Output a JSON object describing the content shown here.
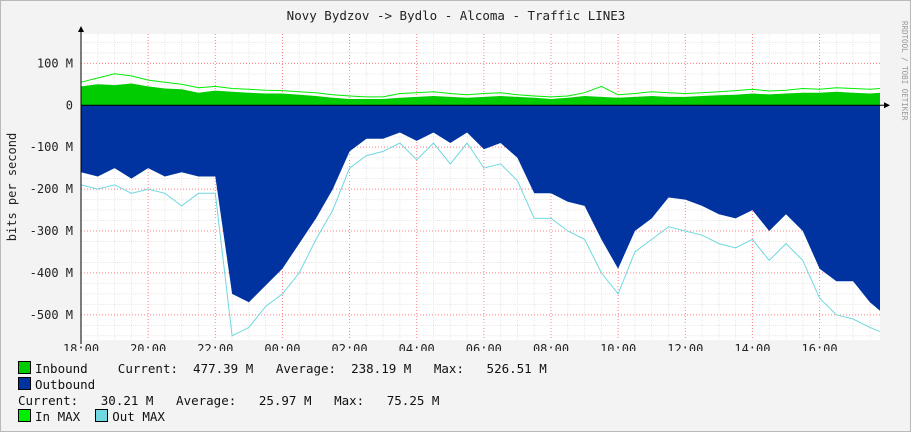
{
  "title": "Novy Bydzov -> Bydlo - Alcoma - Traffic LINE3",
  "watermark": "RRDTOOL / TOBI OETIKER",
  "colors": {
    "inbound": "#00cc00",
    "outbound": "#0033a0",
    "in_max": "#00ee00",
    "out_max": "#70d8e0",
    "grid": "#ff9999",
    "background": "#ffffff"
  },
  "legend": {
    "inbound_label": "Inbound",
    "inbound_stats": "Current:  477.39 M   Average:  238.19 M   Max:   526.51 M",
    "outbound_label": "Outbound",
    "outbound_stats": "Current:   30.21 M   Average:   25.97 M   Max:   75.25 M",
    "in_max_label": "In MAX",
    "out_max_label": "Out MAX"
  },
  "chart_data": {
    "type": "area",
    "title": "Novy Bydzov -> Bydlo - Alcoma - Traffic LINE3",
    "ylabel": "bits per second",
    "xlabel": "",
    "xlim": [
      18,
      41.8
    ],
    "ylim": [
      -560,
      170
    ],
    "x_unit": "hours (18:00 day 1 to 17:48 day 2)",
    "x_ticks": [
      "18:00",
      "20:00",
      "22:00",
      "00:00",
      "02:00",
      "04:00",
      "06:00",
      "08:00",
      "10:00",
      "12:00",
      "14:00",
      "16:00"
    ],
    "y_ticks": [
      "100 M",
      "0",
      "-100 M",
      "-200 M",
      "-300 M",
      "-400 M",
      "-500 M"
    ],
    "y_tick_values": [
      100,
      0,
      -100,
      -200,
      -300,
      -400,
      -500
    ],
    "grid": true,
    "series": [
      {
        "name": "Inbound",
        "x": [
          18.0,
          18.5,
          19.0,
          19.5,
          20.0,
          20.5,
          21.0,
          21.5,
          22.0,
          22.5,
          23.0,
          23.5,
          24.0,
          24.5,
          25.0,
          25.5,
          26.0,
          26.5,
          27.0,
          27.5,
          28.0,
          28.5,
          29.0,
          29.5,
          30.0,
          30.5,
          31.0,
          31.5,
          32.0,
          32.5,
          33.0,
          33.5,
          34.0,
          34.5,
          35.0,
          35.5,
          36.0,
          36.5,
          37.0,
          37.5,
          38.0,
          38.5,
          39.0,
          39.5,
          40.0,
          40.5,
          41.0,
          41.5,
          41.8
        ],
        "values": [
          -160,
          -170,
          -150,
          -175,
          -150,
          -170,
          -160,
          -170,
          -170,
          -450,
          -470,
          -430,
          -390,
          -330,
          -270,
          -200,
          -110,
          -80,
          -80,
          -65,
          -85,
          -65,
          -90,
          -65,
          -105,
          -90,
          -125,
          -210,
          -210,
          -230,
          -240,
          -320,
          -390,
          -300,
          -270,
          -220,
          -225,
          -240,
          -260,
          -270,
          -250,
          -300,
          -260,
          -300,
          -390,
          -420,
          -420,
          -470,
          -490
        ]
      },
      {
        "name": "Outbound",
        "x": [
          18.0,
          18.5,
          19.0,
          19.5,
          20.0,
          20.5,
          21.0,
          21.5,
          22.0,
          22.5,
          23.0,
          23.5,
          24.0,
          24.5,
          25.0,
          25.5,
          26.0,
          26.5,
          27.0,
          27.5,
          28.0,
          28.5,
          29.0,
          29.5,
          30.0,
          30.5,
          31.0,
          31.5,
          32.0,
          32.5,
          33.0,
          33.5,
          34.0,
          34.5,
          35.0,
          35.5,
          36.0,
          36.5,
          37.0,
          37.5,
          38.0,
          38.5,
          39.0,
          39.5,
          40.0,
          40.5,
          41.0,
          41.5,
          41.8
        ],
        "values": [
          45,
          50,
          48,
          52,
          45,
          40,
          38,
          30,
          35,
          32,
          30,
          28,
          28,
          25,
          22,
          18,
          15,
          15,
          15,
          18,
          20,
          22,
          20,
          18,
          20,
          22,
          20,
          18,
          15,
          18,
          22,
          20,
          18,
          20,
          22,
          20,
          20,
          22,
          24,
          25,
          28,
          26,
          28,
          30,
          30,
          32,
          30,
          28,
          30
        ]
      },
      {
        "name": "In MAX",
        "x": [
          18.0,
          18.5,
          19.0,
          19.5,
          20.0,
          20.5,
          21.0,
          21.5,
          22.0,
          22.5,
          23.0,
          23.5,
          24.0,
          24.5,
          25.0,
          25.5,
          26.0,
          26.5,
          27.0,
          27.5,
          28.0,
          28.5,
          29.0,
          29.5,
          30.0,
          30.5,
          31.0,
          31.5,
          32.0,
          32.5,
          33.0,
          33.5,
          34.0,
          34.5,
          35.0,
          35.5,
          36.0,
          36.5,
          37.0,
          37.5,
          38.0,
          38.5,
          39.0,
          39.5,
          40.0,
          40.5,
          41.0,
          41.5,
          41.8
        ],
        "values": [
          55,
          65,
          75,
          70,
          60,
          55,
          50,
          42,
          45,
          40,
          38,
          36,
          35,
          32,
          30,
          25,
          22,
          20,
          20,
          28,
          30,
          32,
          28,
          25,
          28,
          30,
          25,
          22,
          20,
          22,
          30,
          45,
          25,
          28,
          32,
          30,
          28,
          30,
          32,
          35,
          38,
          34,
          36,
          40,
          38,
          42,
          40,
          38,
          40
        ]
      },
      {
        "name": "Out MAX",
        "x": [
          18.0,
          18.5,
          19.0,
          19.5,
          20.0,
          20.5,
          21.0,
          21.5,
          22.0,
          22.5,
          23.0,
          23.5,
          24.0,
          24.5,
          25.0,
          25.5,
          26.0,
          26.5,
          27.0,
          27.5,
          28.0,
          28.5,
          29.0,
          29.5,
          30.0,
          30.5,
          31.0,
          31.5,
          32.0,
          32.5,
          33.0,
          33.5,
          34.0,
          34.5,
          35.0,
          35.5,
          36.0,
          36.5,
          37.0,
          37.5,
          38.0,
          38.5,
          39.0,
          39.5,
          40.0,
          40.5,
          41.0,
          41.5,
          41.8
        ],
        "values": [
          -190,
          -200,
          -190,
          -210,
          -200,
          -210,
          -240,
          -210,
          -210,
          -550,
          -530,
          -480,
          -450,
          -400,
          -320,
          -250,
          -150,
          -120,
          -110,
          -90,
          -130,
          -90,
          -140,
          -90,
          -150,
          -140,
          -180,
          -270,
          -270,
          -300,
          -320,
          -400,
          -450,
          -350,
          -320,
          -290,
          -300,
          -310,
          -330,
          -340,
          -320,
          -370,
          -330,
          -370,
          -460,
          -500,
          -510,
          -530,
          -540
        ]
      }
    ]
  }
}
